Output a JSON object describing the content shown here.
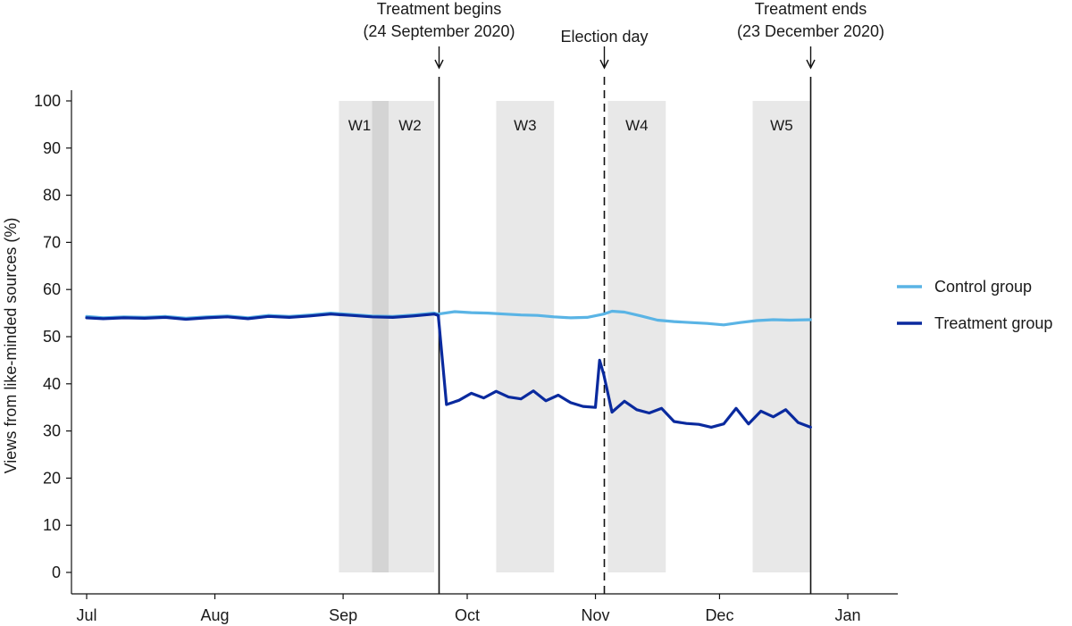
{
  "chart_data": {
    "type": "line",
    "title": "",
    "ylabel": "Views from like-minded sources (%)",
    "xlabel": "",
    "ylim": [
      0,
      100
    ],
    "y_ticks": [
      0,
      10,
      20,
      30,
      40,
      50,
      60,
      70,
      80,
      90,
      100
    ],
    "x_range": [
      "2020-07-01",
      "2021-01-01"
    ],
    "x_ticks": [
      {
        "date": "2020-07-01",
        "label": "Jul"
      },
      {
        "date": "2020-08-01",
        "label": "Aug"
      },
      {
        "date": "2020-09-01",
        "label": "Sep"
      },
      {
        "date": "2020-10-01",
        "label": "Oct"
      },
      {
        "date": "2020-11-01",
        "label": "Nov"
      },
      {
        "date": "2020-12-01",
        "label": "Dec"
      },
      {
        "date": "2021-01-01",
        "label": "Jan"
      }
    ],
    "grid": false,
    "legend_position": "right",
    "waves": [
      {
        "label": "W1",
        "start": "2020-08-31",
        "end": "2020-09-08"
      },
      {
        "label": "W2",
        "start": "2020-09-08",
        "end": "2020-09-23"
      },
      {
        "label": "W3",
        "start": "2020-10-08",
        "end": "2020-10-22"
      },
      {
        "label": "W4",
        "start": "2020-11-04",
        "end": "2020-11-18"
      },
      {
        "label": "W5",
        "start": "2020-12-09",
        "end": "2020-12-23"
      }
    ],
    "wave_overlap": {
      "start": "2020-09-08",
      "end": "2020-09-12"
    },
    "annotations": [
      {
        "lines": [
          "Treatment begins",
          "(24 September 2020)"
        ],
        "date": "2020-09-24",
        "line_style": "solid"
      },
      {
        "lines": [
          "Election day"
        ],
        "date": "2020-11-03",
        "line_style": "dashed"
      },
      {
        "lines": [
          "Treatment ends",
          "(23 December 2020)"
        ],
        "date": "2020-12-23",
        "line_style": "solid"
      }
    ],
    "series": [
      {
        "name": "Control group",
        "color": "#5ab4e5",
        "x": [
          "2020-07-01",
          "2020-07-05",
          "2020-07-10",
          "2020-07-15",
          "2020-07-20",
          "2020-07-25",
          "2020-07-30",
          "2020-08-04",
          "2020-08-09",
          "2020-08-14",
          "2020-08-19",
          "2020-08-24",
          "2020-08-29",
          "2020-09-03",
          "2020-09-08",
          "2020-09-13",
          "2020-09-18",
          "2020-09-23",
          "2020-09-24",
          "2020-09-28",
          "2020-10-02",
          "2020-10-06",
          "2020-10-10",
          "2020-10-14",
          "2020-10-18",
          "2020-10-22",
          "2020-10-26",
          "2020-10-30",
          "2020-11-03",
          "2020-11-05",
          "2020-11-08",
          "2020-11-12",
          "2020-11-16",
          "2020-11-20",
          "2020-11-24",
          "2020-11-28",
          "2020-12-02",
          "2020-12-06",
          "2020-12-10",
          "2020-12-14",
          "2020-12-18",
          "2020-12-23"
        ],
        "values": [
          54.3,
          54.0,
          54.2,
          54.1,
          54.3,
          53.9,
          54.2,
          54.4,
          54.0,
          54.5,
          54.3,
          54.6,
          55.0,
          54.7,
          54.4,
          54.3,
          54.6,
          55.0,
          54.8,
          55.3,
          55.1,
          55.0,
          54.8,
          54.6,
          54.5,
          54.2,
          54.0,
          54.1,
          54.8,
          55.4,
          55.2,
          54.4,
          53.5,
          53.2,
          53.0,
          52.8,
          52.5,
          53.0,
          53.4,
          53.6,
          53.5,
          53.6
        ]
      },
      {
        "name": "Treatment group",
        "color": "#0a2a9e",
        "x": [
          "2020-07-01",
          "2020-07-05",
          "2020-07-10",
          "2020-07-15",
          "2020-07-20",
          "2020-07-25",
          "2020-07-30",
          "2020-08-04",
          "2020-08-09",
          "2020-08-14",
          "2020-08-19",
          "2020-08-24",
          "2020-08-29",
          "2020-09-03",
          "2020-09-08",
          "2020-09-13",
          "2020-09-18",
          "2020-09-23",
          "2020-09-24",
          "2020-09-26",
          "2020-09-29",
          "2020-10-02",
          "2020-10-05",
          "2020-10-08",
          "2020-10-11",
          "2020-10-14",
          "2020-10-17",
          "2020-10-20",
          "2020-10-23",
          "2020-10-26",
          "2020-10-29",
          "2020-11-01",
          "2020-11-02",
          "2020-11-03",
          "2020-11-05",
          "2020-11-08",
          "2020-11-11",
          "2020-11-14",
          "2020-11-17",
          "2020-11-20",
          "2020-11-23",
          "2020-11-26",
          "2020-11-29",
          "2020-12-02",
          "2020-12-05",
          "2020-12-08",
          "2020-12-11",
          "2020-12-14",
          "2020-12-17",
          "2020-12-20",
          "2020-12-23"
        ],
        "values": [
          54.0,
          53.8,
          54.0,
          53.9,
          54.1,
          53.7,
          54.0,
          54.2,
          53.8,
          54.3,
          54.1,
          54.4,
          54.8,
          54.5,
          54.2,
          54.1,
          54.4,
          54.8,
          54.5,
          35.6,
          36.5,
          38.0,
          37.0,
          38.4,
          37.2,
          36.8,
          38.5,
          36.4,
          37.6,
          36.0,
          35.2,
          35.0,
          45.0,
          42.0,
          34.0,
          36.3,
          34.5,
          33.8,
          34.8,
          32.0,
          31.6,
          31.4,
          30.8,
          31.5,
          34.8,
          31.5,
          34.2,
          33.0,
          34.5,
          31.8,
          30.8
        ]
      }
    ]
  }
}
